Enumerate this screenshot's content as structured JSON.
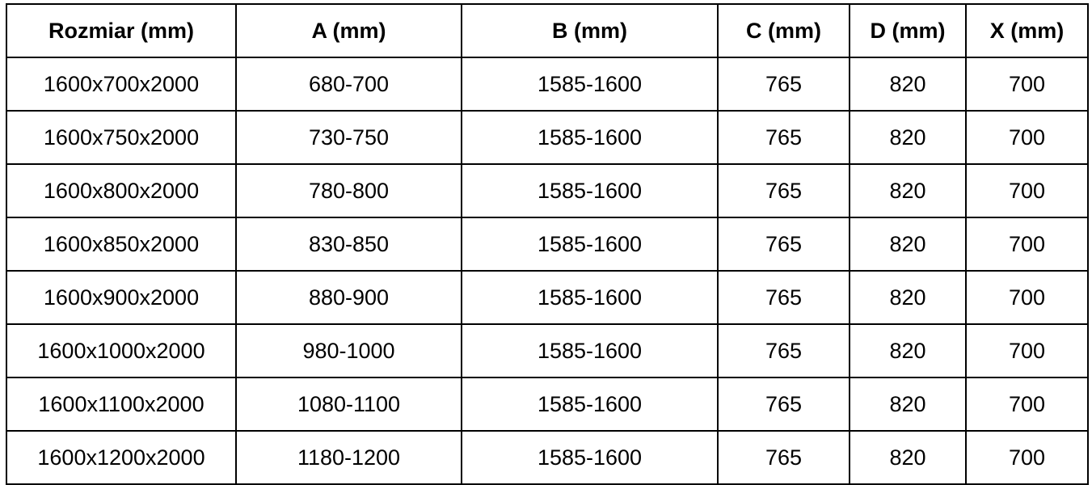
{
  "colors": {
    "border": "#000000",
    "text": "#000000",
    "background": "#ffffff"
  },
  "table": {
    "columns": [
      "Rozmiar (mm)",
      "A (mm)",
      "B (mm)",
      "C (mm)",
      "D (mm)",
      "X (mm)"
    ],
    "rows": [
      [
        "1600x700x2000",
        "680-700",
        "1585-1600",
        "765",
        "820",
        "700"
      ],
      [
        "1600x750x2000",
        "730-750",
        "1585-1600",
        "765",
        "820",
        "700"
      ],
      [
        "1600x800x2000",
        "780-800",
        "1585-1600",
        "765",
        "820",
        "700"
      ],
      [
        "1600x850x2000",
        "830-850",
        "1585-1600",
        "765",
        "820",
        "700"
      ],
      [
        "1600x900x2000",
        "880-900",
        "1585-1600",
        "765",
        "820",
        "700"
      ],
      [
        "1600x1000x2000",
        "980-1000",
        "1585-1600",
        "765",
        "820",
        "700"
      ],
      [
        "1600x1100x2000",
        "1080-1100",
        "1585-1600",
        "765",
        "820",
        "700"
      ],
      [
        "1600x1200x2000",
        "1180-1200",
        "1585-1600",
        "765",
        "820",
        "700"
      ]
    ]
  }
}
